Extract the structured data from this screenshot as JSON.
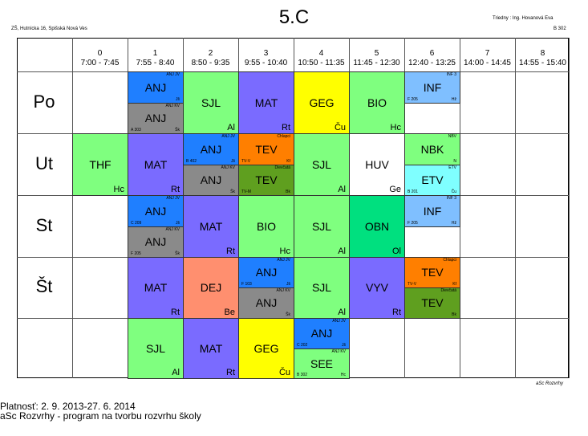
{
  "header": {
    "title": "5.C",
    "school": "ZŠ, Hutnícka 16, Spišská Nová Ves",
    "teacher": "Triedny : Ing. Hovanová Eva",
    "room": "B 302"
  },
  "periods": [
    {
      "num": "0",
      "time": "7:00 - 7:45"
    },
    {
      "num": "1",
      "time": "7:55 - 8:40"
    },
    {
      "num": "2",
      "time": "8:50 - 9:35"
    },
    {
      "num": "3",
      "time": "9:55 - 10:40"
    },
    {
      "num": "4",
      "time": "10:50 - 11:35"
    },
    {
      "num": "5",
      "time": "11:45 - 12:30"
    },
    {
      "num": "6",
      "time": "12:40 - 13:25"
    },
    {
      "num": "7",
      "time": "14:00 - 14:45"
    },
    {
      "num": "8",
      "time": "14:55 - 15:40"
    }
  ],
  "days": [
    "Po",
    "Ut",
    "St",
    "Št",
    ""
  ],
  "lessons": [
    {
      "day": 0,
      "period": 1,
      "half": "top",
      "subject": "ANJ",
      "teacher": "",
      "room_tag": "",
      "group": "ANJ JV",
      "code": "Jš",
      "color": "#1f7fff"
    },
    {
      "day": 0,
      "period": 1,
      "half": "bottom",
      "subject": "ANJ",
      "teacher": "",
      "room_tag": "A 303",
      "group": "ANJ KV",
      "code": "Šk",
      "color": "#8a8a8a"
    },
    {
      "day": 0,
      "period": 2,
      "half": "full",
      "subject": "SJL",
      "teacher": "Al",
      "room_tag": "",
      "group": "",
      "code": "",
      "color": "#7fff7f"
    },
    {
      "day": 0,
      "period": 3,
      "half": "full",
      "subject": "MAT",
      "teacher": "Rt",
      "room_tag": "",
      "group": "",
      "code": "",
      "color": "#7a6bff"
    },
    {
      "day": 0,
      "period": 4,
      "half": "full",
      "subject": "GEG",
      "teacher": "Ču",
      "room_tag": "",
      "group": "",
      "code": "",
      "color": "#ffff00"
    },
    {
      "day": 0,
      "period": 5,
      "half": "full",
      "subject": "BIO",
      "teacher": "Hc",
      "room_tag": "",
      "group": "",
      "code": "",
      "color": "#7fff7f"
    },
    {
      "day": 0,
      "period": 6,
      "half": "top",
      "subject": "INF",
      "teacher": "",
      "room_tag": "F 205",
      "group": "INF 3",
      "code": "Hž",
      "color": "#7fbfff"
    },
    {
      "day": 1,
      "period": 0,
      "half": "full",
      "subject": "THF",
      "teacher": "Hc",
      "room_tag": "",
      "group": "",
      "code": "",
      "color": "#7fff7f"
    },
    {
      "day": 1,
      "period": 1,
      "half": "full",
      "subject": "MAT",
      "teacher": "Rt",
      "room_tag": "",
      "group": "",
      "code": "",
      "color": "#7a6bff"
    },
    {
      "day": 1,
      "period": 2,
      "half": "top",
      "subject": "ANJ",
      "teacher": "",
      "room_tag": "B 402",
      "group": "ANJ JV",
      "code": "Jš",
      "color": "#1f7fff"
    },
    {
      "day": 1,
      "period": 2,
      "half": "bottom",
      "subject": "ANJ",
      "teacher": "",
      "room_tag": "",
      "group": "ANJ KV",
      "code": "Šk",
      "color": "#8a8a8a"
    },
    {
      "day": 1,
      "period": 3,
      "half": "top",
      "subject": "TEV",
      "teacher": "",
      "room_tag": "TV-V",
      "group": "Chlapci",
      "code": "Kf",
      "color": "#ff7f00"
    },
    {
      "day": 1,
      "period": 3,
      "half": "bottom",
      "subject": "TEV",
      "teacher": "",
      "room_tag": "TV-M",
      "group": "Dievčatá",
      "code": "Bk",
      "color": "#5f9f1f"
    },
    {
      "day": 1,
      "period": 4,
      "half": "full",
      "subject": "SJL",
      "teacher": "Al",
      "room_tag": "",
      "group": "",
      "code": "",
      "color": "#7fff7f"
    },
    {
      "day": 1,
      "period": 5,
      "half": "full",
      "subject": "HUV",
      "teacher": "Ge",
      "room_tag": "",
      "group": "",
      "code": "",
      "color": "#ffffff"
    },
    {
      "day": 1,
      "period": 6,
      "half": "top",
      "subject": "NBK",
      "teacher": "",
      "room_tag": "",
      "group": "NBV",
      "code": "N",
      "color": "#7fff7f"
    },
    {
      "day": 1,
      "period": 6,
      "half": "bottom",
      "subject": "ETV",
      "teacher": "",
      "room_tag": "B 201",
      "group": "ETV",
      "code": "Ču",
      "color": "#7fffff"
    },
    {
      "day": 2,
      "period": 1,
      "half": "top",
      "subject": "ANJ",
      "teacher": "",
      "room_tag": "C 209",
      "group": "ANJ JV",
      "code": "Jš",
      "color": "#1f7fff"
    },
    {
      "day": 2,
      "period": 1,
      "half": "bottom",
      "subject": "ANJ",
      "teacher": "",
      "room_tag": "F 205",
      "group": "ANJ KV",
      "code": "Šk",
      "color": "#8a8a8a"
    },
    {
      "day": 2,
      "period": 2,
      "half": "full",
      "subject": "MAT",
      "teacher": "Rt",
      "room_tag": "",
      "group": "",
      "code": "",
      "color": "#7a6bff"
    },
    {
      "day": 2,
      "period": 3,
      "half": "full",
      "subject": "BIO",
      "teacher": "Hc",
      "room_tag": "",
      "group": "",
      "code": "",
      "color": "#7fff7f"
    },
    {
      "day": 2,
      "period": 4,
      "half": "full",
      "subject": "SJL",
      "teacher": "Al",
      "room_tag": "",
      "group": "",
      "code": "",
      "color": "#7fff7f"
    },
    {
      "day": 2,
      "period": 5,
      "half": "full",
      "subject": "OBN",
      "teacher": "Ol",
      "room_tag": "",
      "group": "",
      "code": "",
      "color": "#00e07f"
    },
    {
      "day": 2,
      "period": 6,
      "half": "top",
      "subject": "INF",
      "teacher": "",
      "room_tag": "F 205",
      "group": "INF 3",
      "code": "Hž",
      "color": "#7fbfff"
    },
    {
      "day": 3,
      "period": 1,
      "half": "full",
      "subject": "MAT",
      "teacher": "Rt",
      "room_tag": "",
      "group": "",
      "code": "",
      "color": "#7a6bff"
    },
    {
      "day": 3,
      "period": 2,
      "half": "full",
      "subject": "DEJ",
      "teacher": "Be",
      "room_tag": "",
      "group": "",
      "code": "",
      "color": "#ff8f6f"
    },
    {
      "day": 3,
      "period": 3,
      "half": "top",
      "subject": "ANJ",
      "teacher": "",
      "room_tag": "F 103",
      "group": "ANJ JV",
      "code": "Jš",
      "color": "#1f7fff"
    },
    {
      "day": 3,
      "period": 3,
      "half": "bottom",
      "subject": "ANJ",
      "teacher": "",
      "room_tag": "",
      "group": "ANJ KV",
      "code": "Šk",
      "color": "#8a8a8a"
    },
    {
      "day": 3,
      "period": 4,
      "half": "full",
      "subject": "SJL",
      "teacher": "Al",
      "room_tag": "",
      "group": "",
      "code": "",
      "color": "#7fff7f"
    },
    {
      "day": 3,
      "period": 5,
      "half": "full",
      "subject": "VYV",
      "teacher": "Rt",
      "room_tag": "",
      "group": "",
      "code": "",
      "color": "#7a6bff"
    },
    {
      "day": 3,
      "period": 6,
      "half": "top",
      "subject": "TEV",
      "teacher": "",
      "room_tag": "TV-V",
      "group": "Chlapci",
      "code": "Kf",
      "color": "#ff7f00"
    },
    {
      "day": 3,
      "period": 6,
      "half": "bottom",
      "subject": "TEV",
      "teacher": "",
      "room_tag": "",
      "group": "Dievčatá",
      "code": "Bk",
      "color": "#5f9f1f"
    },
    {
      "day": 4,
      "period": 1,
      "half": "full",
      "subject": "SJL",
      "teacher": "Al",
      "room_tag": "",
      "group": "",
      "code": "",
      "color": "#7fff7f"
    },
    {
      "day": 4,
      "period": 2,
      "half": "full",
      "subject": "MAT",
      "teacher": "Rt",
      "room_tag": "",
      "group": "",
      "code": "",
      "color": "#7a6bff"
    },
    {
      "day": 4,
      "period": 3,
      "half": "full",
      "subject": "GEG",
      "teacher": "Ču",
      "room_tag": "",
      "group": "",
      "code": "",
      "color": "#ffff00"
    },
    {
      "day": 4,
      "period": 4,
      "half": "top",
      "subject": "ANJ",
      "teacher": "",
      "room_tag": "C 202",
      "group": "ANJ JV",
      "code": "Jš",
      "color": "#1f7fff"
    },
    {
      "day": 4,
      "period": 4,
      "half": "bottom",
      "subject": "SEE",
      "teacher": "",
      "room_tag": "B 302",
      "group": "ANJ KV",
      "code": "Hc",
      "color": "#7fff7f"
    }
  ],
  "footer": {
    "validity": "Platnosť: 2. 9. 2013-27. 6. 2014",
    "software": "aSc Rozvrhy - program na tvorbu rozvrhu školy",
    "brand": "aSc Rozvrhy"
  }
}
